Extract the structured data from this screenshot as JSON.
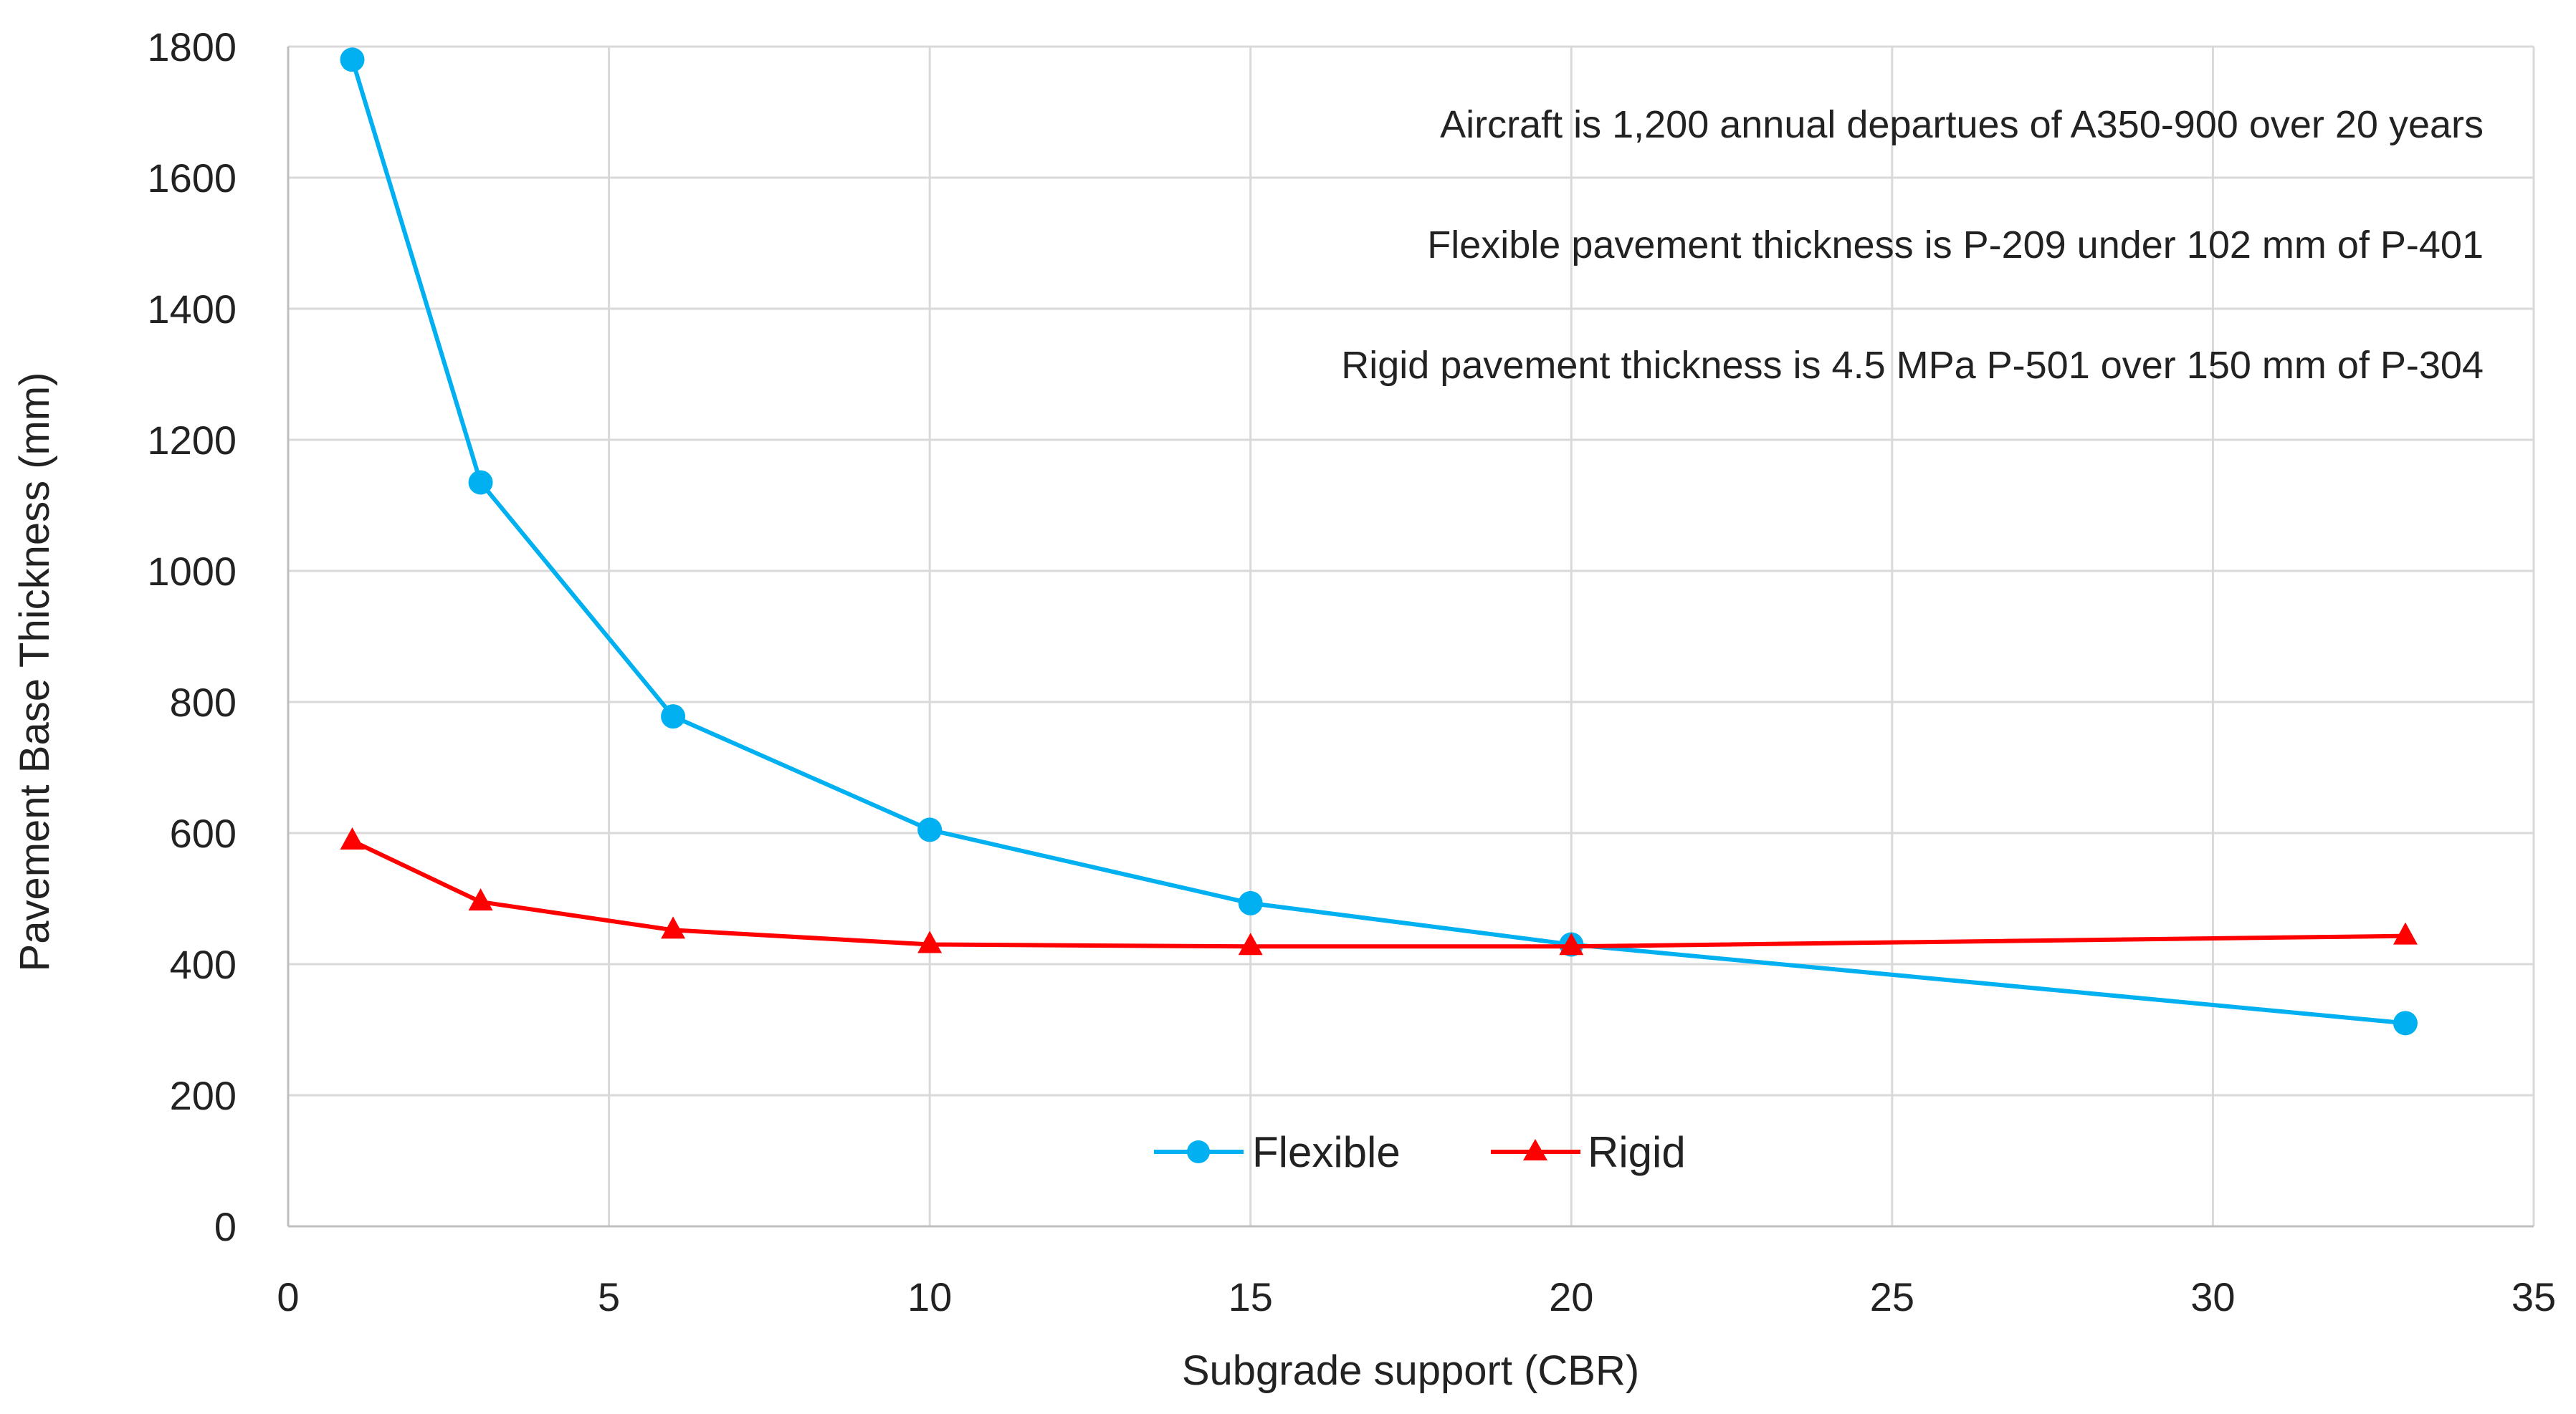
{
  "chart_data": {
    "type": "line",
    "title": "",
    "xlabel": "Subgrade support (CBR)",
    "ylabel": "Pavement Base Thickness (mm)",
    "xlim": [
      0,
      35
    ],
    "ylim": [
      0,
      1800
    ],
    "x_ticks": [
      0,
      5,
      10,
      15,
      20,
      25,
      30,
      35
    ],
    "y_ticks": [
      0,
      200,
      400,
      600,
      800,
      1000,
      1200,
      1400,
      1600,
      1800
    ],
    "grid": true,
    "legend_position": "bottom-center",
    "series": [
      {
        "name": "Flexible",
        "color": "#00b0f0",
        "marker": "circle",
        "x": [
          1,
          3,
          6,
          10,
          15,
          20,
          33
        ],
        "y": [
          1780,
          1135,
          778,
          605,
          493,
          430,
          310
        ]
      },
      {
        "name": "Rigid",
        "color": "#ff0000",
        "marker": "triangle",
        "x": [
          1,
          3,
          6,
          10,
          15,
          20,
          33
        ],
        "y": [
          588,
          495,
          452,
          430,
          427,
          427,
          443
        ]
      }
    ],
    "annotations": [
      "Aircraft is 1,200 annual departues of A350-900 over 20 years",
      "Flexible pavement thickness is P-209 under 102 mm of P-401",
      "Rigid pavement thickness is 4.5 MPa P-501 over 150 mm of P-304"
    ]
  }
}
